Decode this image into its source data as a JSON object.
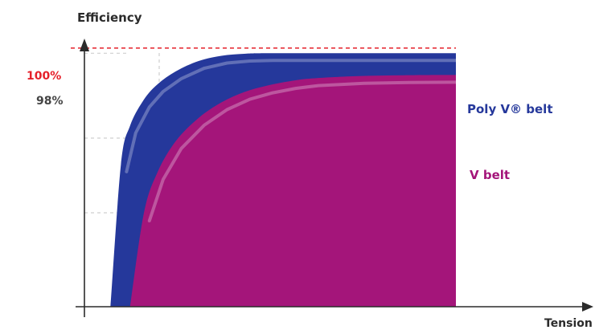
{
  "chart_data": {
    "type": "area",
    "title": "",
    "ylabel": "Efficiency",
    "xlabel": "Tension",
    "reference_line": {
      "label": "100%",
      "value": 100,
      "color": "#e5202a"
    },
    "y_tick_labels": [
      "98%"
    ],
    "ylim": [
      0,
      104
    ],
    "xlim": [
      0,
      100
    ],
    "series": [
      {
        "name": "Poly V® belt",
        "color": "#25389b",
        "x": [
          5.7,
          8,
          10,
          13,
          16,
          20,
          25,
          30,
          35,
          40,
          50,
          60,
          75,
          90,
          100
        ],
        "y": [
          0,
          55,
          70,
          80,
          86,
          91,
          95,
          97,
          97.8,
          98,
          98,
          98,
          98,
          98,
          98
        ]
      },
      {
        "name": "V belt",
        "color": "#a4157a",
        "x": [
          10,
          13,
          16,
          20,
          25,
          30,
          35,
          40,
          45,
          50,
          60,
          70,
          80,
          90,
          100
        ],
        "y": [
          0,
          36,
          52,
          64,
          73,
          79,
          83,
          85.5,
          87.2,
          88.3,
          89.2,
          89.5,
          89.6,
          89.6,
          89.6
        ]
      }
    ],
    "grid": false,
    "legend": "right"
  },
  "colors": {
    "axis": "#2b2b2b",
    "guide": "#cfcfcf",
    "reference": "#e5202a",
    "poly_label": "#25389b",
    "v_label": "#a4157a"
  }
}
